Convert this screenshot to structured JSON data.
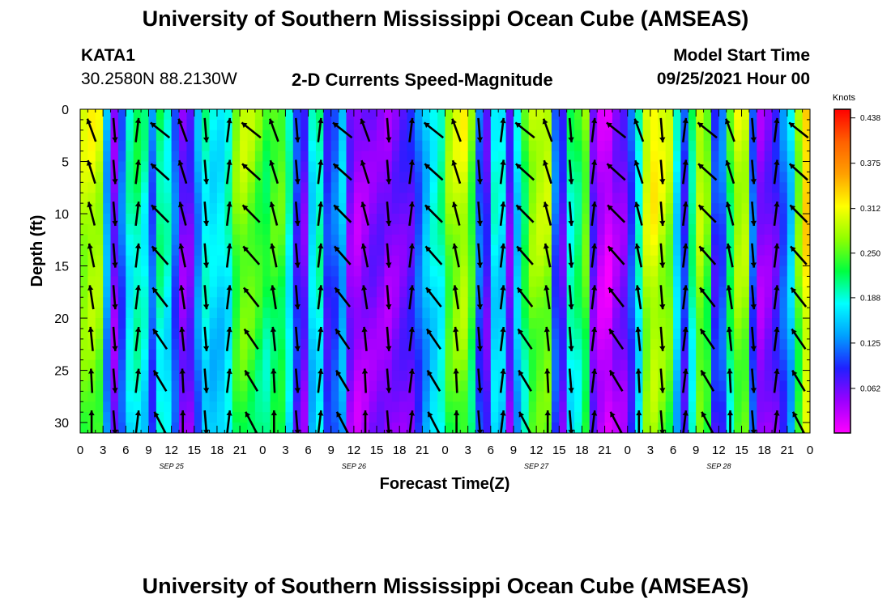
{
  "page": {
    "title_top": "University of Southern Mississippi Ocean Cube (AMSEAS)",
    "title_bottom": "University of Southern Mississippi Ocean Cube (AMSEAS)"
  },
  "station": {
    "id": "KATA1",
    "coords": "30.2580N  88.2130W"
  },
  "model": {
    "start_label": "Model Start Time",
    "start_value": "09/25/2021 Hour 00"
  },
  "chart_data": {
    "type": "heatmap",
    "title": "2-D Currents Speed-Magnitude",
    "xlabel": "Forecast Time(Z)",
    "ylabel": "Depth (ft)",
    "x_ticks": [
      "0",
      "3",
      "6",
      "9",
      "12",
      "15",
      "18",
      "21",
      "0",
      "3",
      "6",
      "9",
      "12",
      "15",
      "18",
      "21",
      "0",
      "3",
      "6",
      "9",
      "12",
      "15",
      "18",
      "21",
      "0",
      "3",
      "6",
      "9",
      "12",
      "15",
      "18",
      "21",
      "0"
    ],
    "x_range_hours": [
      0,
      96
    ],
    "day_labels": [
      {
        "label": "SEP 25",
        "hour": 12
      },
      {
        "label": "SEP 26",
        "hour": 36
      },
      {
        "label": "SEP 27",
        "hour": 60
      },
      {
        "label": "SEP 28",
        "hour": 84
      }
    ],
    "y_ticks": [
      0,
      5,
      10,
      15,
      20,
      25,
      30
    ],
    "ylim": [
      0,
      31
    ],
    "colorbar": {
      "unit": "Knots",
      "ticks": [
        0.438,
        0.375,
        0.312,
        0.25,
        0.188,
        0.125,
        0.062
      ],
      "tick_labels": [
        "0.438",
        "0.375",
        "0.312",
        "0.250",
        "0.188",
        "0.125",
        "0.062"
      ],
      "range": [
        0.0,
        0.45
      ],
      "colors": [
        "#ff00ff",
        "#9a00ff",
        "#2020ff",
        "#00a0ff",
        "#00ffff",
        "#00ff40",
        "#90ff00",
        "#ffff00",
        "#ffa000",
        "#ff6000",
        "#ff0000"
      ]
    },
    "column_times": [
      0.5,
      1.5,
      2.5,
      3.5,
      4.5,
      5.5,
      6.5,
      7.5,
      8.5,
      9.5,
      10.5,
      11.5,
      12.5,
      13.5,
      14.5,
      15.5,
      16.5,
      17.5,
      18.5,
      19.5,
      20.5,
      21.5,
      22.5,
      23.5,
      24.5,
      25.5,
      26.5,
      27.5,
      28.5,
      29.5,
      30.5,
      31.5,
      32.5,
      33.5,
      34.5,
      35.5,
      36.5,
      37.5,
      38.5,
      39.5,
      40.5,
      41.5,
      42.5,
      43.5,
      44.5,
      45.5,
      46.5,
      47.5,
      48.5,
      49.5,
      50.5,
      51.5,
      52.5,
      53.5,
      54.5,
      55.5,
      56.5,
      57.5,
      58.5,
      59.5,
      60.5,
      61.5,
      62.5,
      63.5,
      64.5,
      65.5,
      66.5,
      67.5,
      68.5,
      69.5,
      70.5,
      71.5,
      72.5,
      73.5,
      74.5,
      75.5,
      76.5,
      77.5,
      78.5,
      79.5,
      80.5,
      81.5,
      82.5,
      83.5,
      84.5,
      85.5,
      86.5,
      87.5,
      88.5,
      89.5,
      90.5,
      91.5,
      92.5,
      93.5,
      94.5,
      95.5
    ],
    "column_speeds_knots": [
      0.3,
      0.31,
      0.3,
      0.15,
      0.06,
      0.12,
      0.2,
      0.22,
      0.2,
      0.12,
      0.22,
      0.2,
      0.12,
      0.06,
      0.07,
      0.14,
      0.2,
      0.18,
      0.18,
      0.2,
      0.27,
      0.29,
      0.28,
      0.26,
      0.24,
      0.26,
      0.26,
      0.2,
      0.1,
      0.07,
      0.18,
      0.21,
      0.1,
      0.12,
      0.16,
      0.06,
      0.04,
      0.05,
      0.06,
      0.06,
      0.05,
      0.06,
      0.07,
      0.08,
      0.12,
      0.16,
      0.19,
      0.21,
      0.28,
      0.3,
      0.31,
      0.26,
      0.12,
      0.08,
      0.19,
      0.18,
      0.07,
      0.17,
      0.24,
      0.29,
      0.3,
      0.3,
      0.12,
      0.08,
      0.21,
      0.23,
      0.27,
      0.07,
      0.03,
      0.02,
      0.05,
      0.06,
      0.11,
      0.2,
      0.31,
      0.33,
      0.31,
      0.29,
      0.18,
      0.1,
      0.22,
      0.3,
      0.27,
      0.1,
      0.12,
      0.24,
      0.3,
      0.3,
      0.12,
      0.05,
      0.06,
      0.08,
      0.12,
      0.17,
      0.28,
      0.35
    ]
  }
}
